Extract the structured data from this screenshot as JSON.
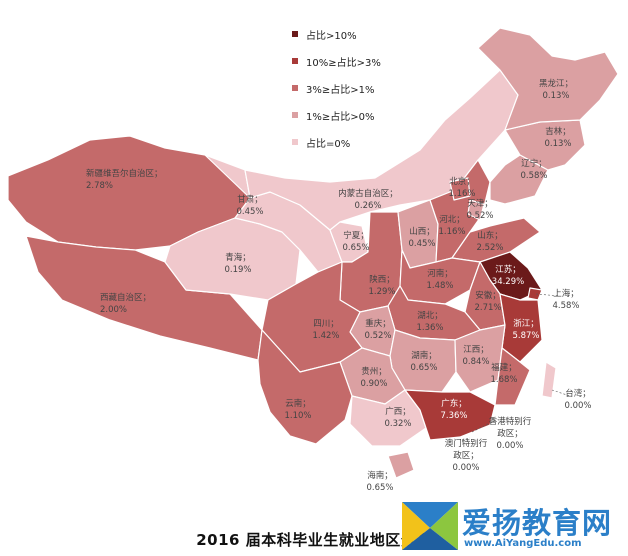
{
  "title": "2016 届本科毕业生就业地区分布",
  "watermark": {
    "name": "爱扬教育网",
    "url": "www.AiYangEdu.com"
  },
  "legend": [
    {
      "label": "占比>10%",
      "color": "#6b1a1a"
    },
    {
      "label": "10%≥占比>3%",
      "color": "#a83a38"
    },
    {
      "label": "3%≥占比>1%",
      "color": "#c46a6a"
    },
    {
      "label": "1%≥占比>0%",
      "color": "#dba0a2"
    },
    {
      "label": "占比=0%",
      "color": "#f0c8cc"
    }
  ],
  "colors": {
    "border": "#ffffff",
    "light_text": "#ffffff"
  },
  "regions": [
    {
      "name": "新疆维吾尔自治区；",
      "value": "2.78%"
    },
    {
      "name": "西藏自治区；",
      "value": "2.00%"
    },
    {
      "name": "青海；",
      "value": "0.19%"
    },
    {
      "name": "甘肃；",
      "value": "0.45%"
    },
    {
      "name": "内蒙古自治区；",
      "value": "0.26%"
    },
    {
      "name": "宁夏；",
      "value": "0.65%"
    },
    {
      "name": "陕西；",
      "value": "1.29%"
    },
    {
      "name": "山西；",
      "value": "0.45%"
    },
    {
      "name": "河北；",
      "value": "1.16%"
    },
    {
      "name": "北京；",
      "value": "1.16%"
    },
    {
      "name": "天津；",
      "value": "0.52%"
    },
    {
      "name": "山东；",
      "value": "2.52%"
    },
    {
      "name": "河南；",
      "value": "1.48%"
    },
    {
      "name": "江苏；",
      "value": "34.29%"
    },
    {
      "name": "安徽；",
      "value": "2.71%"
    },
    {
      "name": "上海；",
      "value": "4.58%"
    },
    {
      "name": "浙江；",
      "value": "5.87%"
    },
    {
      "name": "湖北；",
      "value": "1.36%"
    },
    {
      "name": "重庆；",
      "value": "0.52%"
    },
    {
      "name": "四川；",
      "value": "1.42%"
    },
    {
      "name": "湖南；",
      "value": "0.65%"
    },
    {
      "name": "江西；",
      "value": "0.84%"
    },
    {
      "name": "福建；",
      "value": "1.68%"
    },
    {
      "name": "贵州；",
      "value": "0.90%"
    },
    {
      "name": "云南；",
      "value": "1.10%"
    },
    {
      "name": "广西；",
      "value": "0.32%"
    },
    {
      "name": "广东；",
      "value": "7.36%"
    },
    {
      "name": "海南；",
      "value": "0.65%"
    },
    {
      "name": "台湾；",
      "value": "0.00%"
    },
    {
      "name": "香港特别行政区；",
      "value": "0.00%"
    },
    {
      "name": "澳门特别行政区；",
      "value": "0.00%"
    },
    {
      "name": "辽宁；",
      "value": "0.58%"
    },
    {
      "name": "吉林；",
      "value": "0.13%"
    },
    {
      "name": "黑龙江；",
      "value": "0.13%"
    }
  ]
}
